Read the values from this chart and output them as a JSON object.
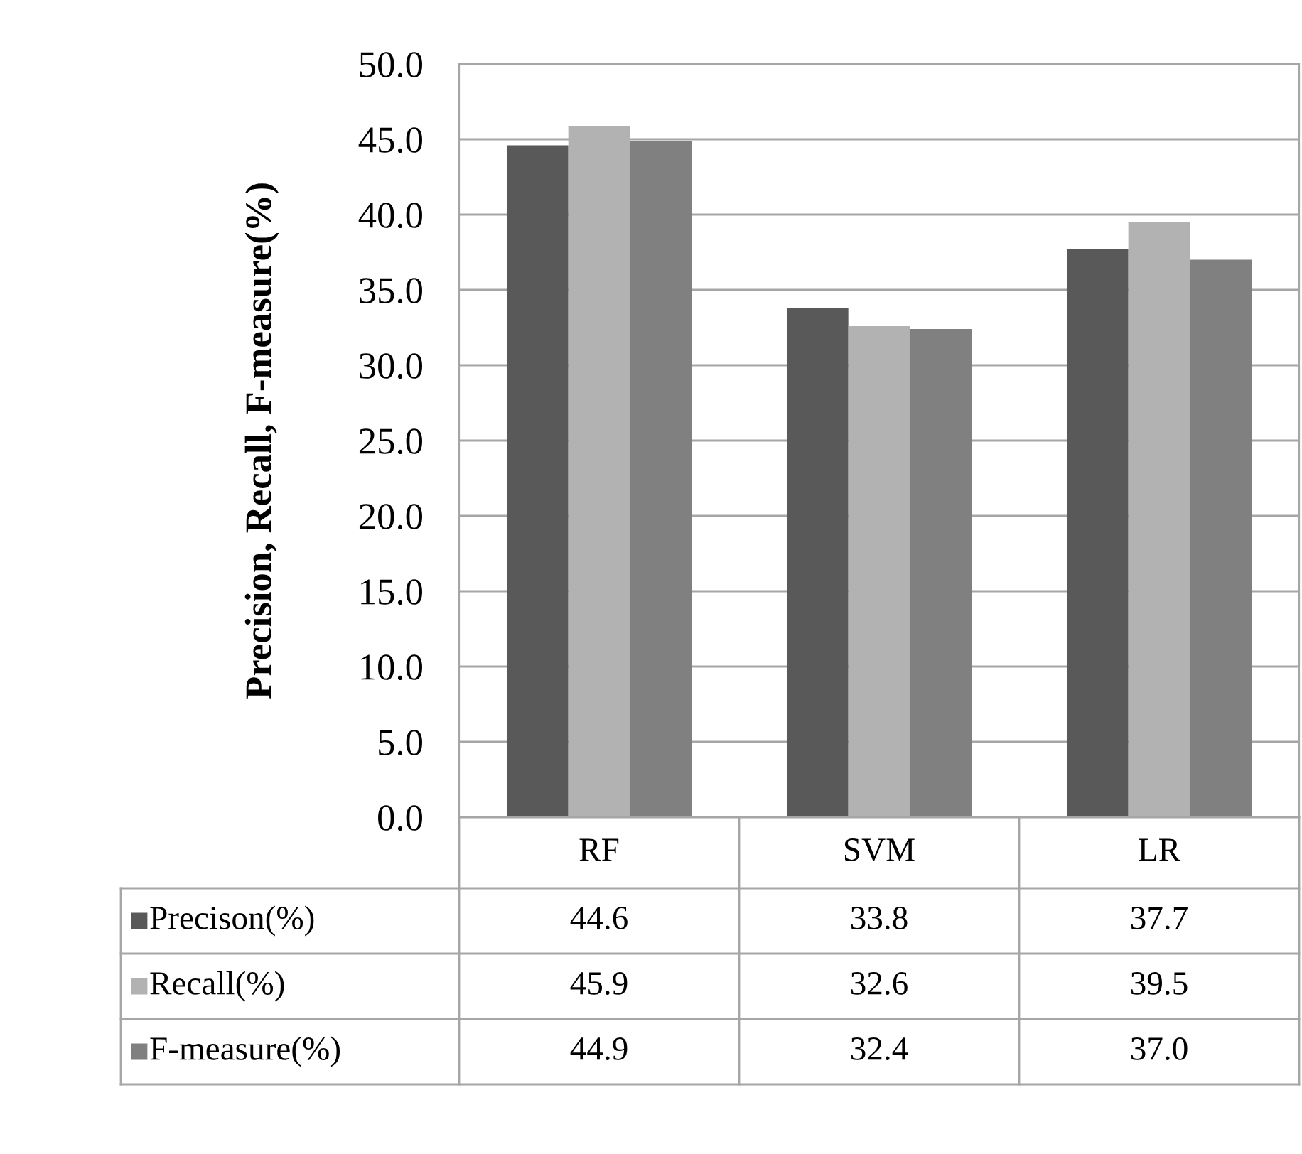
{
  "chart_data": {
    "type": "bar",
    "ylabel": "Precision, Recall, F-measure(%)",
    "categories": [
      "RF",
      "SVM",
      "LR"
    ],
    "series": [
      {
        "name": "Precison(%)",
        "color": "#595959",
        "values": [
          44.6,
          33.8,
          37.7
        ],
        "value_labels": [
          "44.6",
          "33.8",
          "37.7"
        ]
      },
      {
        "name": "Recall(%)",
        "color": "#b2b2b2",
        "values": [
          45.9,
          32.6,
          39.5
        ],
        "value_labels": [
          "45.9",
          "32.6",
          "39.5"
        ]
      },
      {
        "name": "F-measure(%)",
        "color": "#808080",
        "values": [
          44.9,
          32.4,
          37.0
        ],
        "value_labels": [
          "44.9",
          "32.4",
          "37.0"
        ]
      }
    ],
    "ylim": [
      0,
      50
    ],
    "yticks": [
      {
        "value": 0,
        "label": "0.0"
      },
      {
        "value": 5,
        "label": "5.0"
      },
      {
        "value": 10,
        "label": "10.0"
      },
      {
        "value": 15,
        "label": "15.0"
      },
      {
        "value": 20,
        "label": "20.0"
      },
      {
        "value": 25,
        "label": "25.0"
      },
      {
        "value": 30,
        "label": "30.0"
      },
      {
        "value": 35,
        "label": "35.0"
      },
      {
        "value": 40,
        "label": "40.0"
      },
      {
        "value": 45,
        "label": "45.0"
      },
      {
        "value": 50,
        "label": "50.0"
      }
    ],
    "grid": "y",
    "legend": "bottom"
  }
}
